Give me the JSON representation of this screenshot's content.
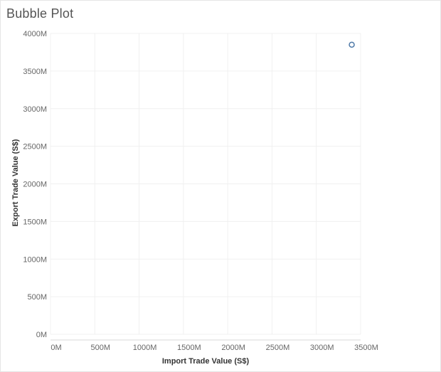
{
  "title": "Bubble Plot",
  "chart_data": {
    "type": "scatter",
    "title": "Bubble Plot",
    "xlabel": "Import Trade Value (S$)",
    "ylabel": "Export Trade Value (S$)",
    "xlim": [
      0,
      3500
    ],
    "ylim": [
      0,
      4000
    ],
    "x_ticks": [
      0,
      500,
      1000,
      1500,
      2000,
      2500,
      3000,
      3500
    ],
    "y_ticks": [
      0,
      500,
      1000,
      1500,
      2000,
      2500,
      3000,
      3500,
      4000
    ],
    "x_tick_labels": [
      "0M",
      "500M",
      "1000M",
      "1500M",
      "2000M",
      "2500M",
      "3000M",
      "3500M"
    ],
    "y_tick_labels": [
      "0M",
      "500M",
      "1000M",
      "1500M",
      "2000M",
      "2500M",
      "3000M",
      "3500M",
      "4000M"
    ],
    "units": "M",
    "grid": true,
    "points": [
      {
        "x": 3400,
        "y": 3850
      }
    ],
    "colors": {
      "point_stroke": "#4e79a7",
      "grid": "#f0f0f0",
      "axis": "#d9d9d9"
    }
  }
}
